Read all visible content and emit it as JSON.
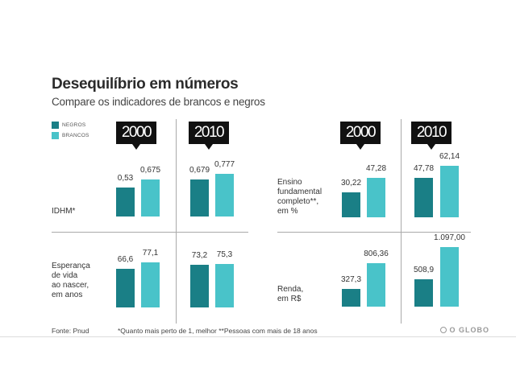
{
  "header": {
    "title": "Desequilíbrio em números",
    "subtitle": "Compare os indicadores de brancos e negros"
  },
  "legend": [
    {
      "label": "NEGROS",
      "color": "#1a7f86"
    },
    {
      "label": "BRANCOS",
      "color": "#49c3c9"
    }
  ],
  "years": [
    "2000",
    "2010",
    "2000",
    "2010"
  ],
  "chart_data": [
    {
      "type": "bar",
      "label": "IDHM*",
      "categories": [
        "2000",
        "2010"
      ],
      "series": [
        {
          "name": "NEGROS",
          "values": [
            0.53,
            0.679
          ],
          "labels": [
            "0,53",
            "0,679"
          ]
        },
        {
          "name": "BRANCOS",
          "values": [
            0.675,
            0.777
          ],
          "labels": [
            "0,675",
            "0,777"
          ]
        }
      ]
    },
    {
      "type": "bar",
      "label": "Esperança de vida ao nascer, em anos",
      "categories": [
        "2000",
        "2010"
      ],
      "series": [
        {
          "name": "NEGROS",
          "values": [
            66.6,
            73.2
          ],
          "labels": [
            "66,6",
            "73,2"
          ]
        },
        {
          "name": "BRANCOS",
          "values": [
            77.1,
            75.3
          ],
          "labels": [
            "77,1",
            "75,3"
          ]
        }
      ]
    },
    {
      "type": "bar",
      "label": "Ensino fundamental completo**, em %",
      "categories": [
        "2000",
        "2010"
      ],
      "series": [
        {
          "name": "NEGROS",
          "values": [
            30.22,
            47.78
          ],
          "labels": [
            "30,22",
            "47,78"
          ]
        },
        {
          "name": "BRANCOS",
          "values": [
            47.28,
            62.14
          ],
          "labels": [
            "47,28",
            "62,14"
          ]
        }
      ]
    },
    {
      "type": "bar",
      "label": "Renda, em R$",
      "categories": [
        "2000",
        "2010"
      ],
      "series": [
        {
          "name": "NEGROS",
          "values": [
            327.3,
            508.9
          ],
          "labels": [
            "327,3",
            "508,9"
          ]
        },
        {
          "name": "BRANCOS",
          "values": [
            806.36,
            1097.0
          ],
          "labels": [
            "806,36",
            "1.097,00"
          ]
        }
      ]
    }
  ],
  "row_labels": {
    "idhm": [
      "IDHM*"
    ],
    "vida": [
      "Esperança",
      "de vida",
      "ao nascer,",
      "em anos"
    ],
    "ensino": [
      "Ensino",
      "fundamental",
      "completo**,",
      "em %"
    ],
    "renda": [
      "Renda,",
      "em R$"
    ]
  },
  "footer": {
    "source": "Fonte: Pnud",
    "note": "*Quanto mais perto de 1, melhor **Pessoas com mais de 18 anos",
    "brand": "O GLOBO"
  }
}
